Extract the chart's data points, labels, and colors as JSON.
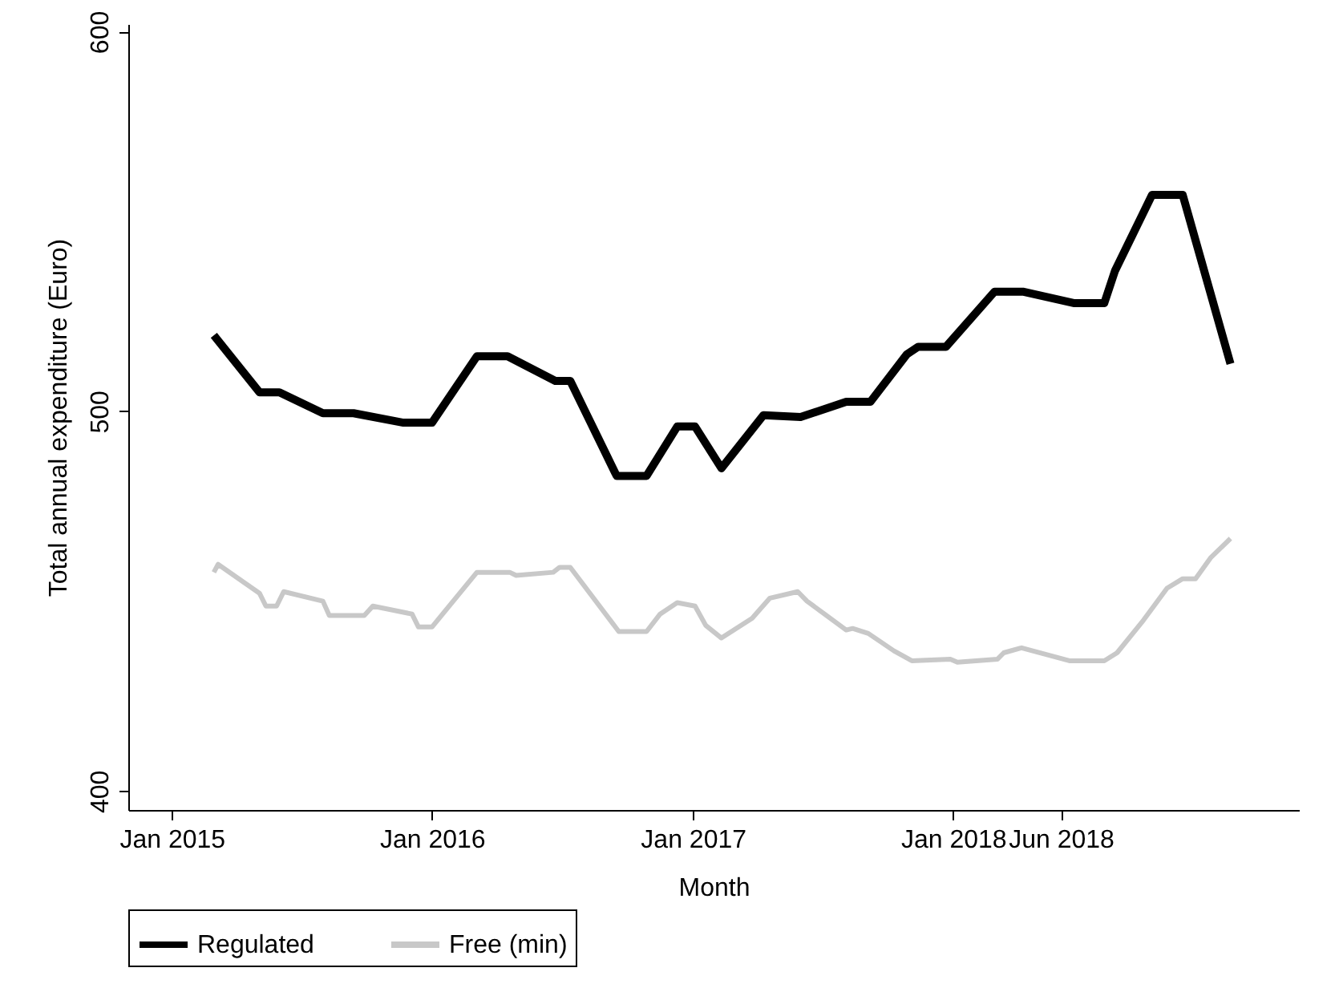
{
  "chart_data": {
    "type": "line",
    "xlabel": "Month",
    "ylabel": "Total annual expenditure (Euro)",
    "xlim": [
      "2014-11-01",
      "2019-05-01"
    ],
    "ylim": [
      395,
      602
    ],
    "xticks": [
      {
        "value": "2015-01",
        "label": "Jan 2015"
      },
      {
        "value": "2016-01",
        "label": "Jan 2016"
      },
      {
        "value": "2017-01",
        "label": "Jan 2017"
      },
      {
        "value": "2018-01",
        "label": "Jan 2018"
      },
      {
        "value": "2018-06",
        "label": "Jun 2018"
      }
    ],
    "yticks": [
      400,
      500,
      600
    ],
    "legend": "bottom",
    "series": [
      {
        "name": "Regulated",
        "color": "#000000",
        "x": [
          "2015-03-01",
          "2015-05-04",
          "2015-06-01",
          "2015-08-01",
          "2015-09-13",
          "2015-11-22",
          "2016-01-01",
          "2016-03-04",
          "2016-04-16",
          "2016-06-22",
          "2016-07-13",
          "2016-09-16",
          "2016-10-28",
          "2016-12-10",
          "2017-01-04",
          "2017-02-10",
          "2017-04-10",
          "2017-06-01",
          "2017-08-04",
          "2017-09-07",
          "2017-10-28",
          "2017-11-13",
          "2017-12-22",
          "2018-02-28",
          "2018-04-10",
          "2018-06-19",
          "2018-08-01",
          "2018-08-16",
          "2018-10-07",
          "2018-11-19",
          "2019-01-25"
        ],
        "values": [
          520,
          505,
          505,
          499.5,
          499.5,
          497,
          497,
          514.5,
          514.5,
          508,
          508,
          483,
          483,
          496,
          496,
          485,
          499,
          498.5,
          502.5,
          502.5,
          515,
          517,
          517,
          531.5,
          531.5,
          528.5,
          528.5,
          537,
          557,
          557,
          512.5
        ]
      },
      {
        "name": "Free (min)",
        "color": "#c8c8c8",
        "x": [
          "2015-03-01",
          "2015-03-07",
          "2015-05-04",
          "2015-05-13",
          "2015-05-28",
          "2015-06-07",
          "2015-08-01",
          "2015-08-10",
          "2015-09-28",
          "2015-10-10",
          "2015-12-04",
          "2015-12-13",
          "2016-01-01",
          "2016-03-04",
          "2016-04-19",
          "2016-04-28",
          "2016-06-19",
          "2016-06-28",
          "2016-07-13",
          "2016-09-19",
          "2016-10-28",
          "2016-11-16",
          "2016-12-10",
          "2017-01-04",
          "2017-01-19",
          "2017-02-10",
          "2017-03-25",
          "2017-04-19",
          "2017-05-28",
          "2017-06-10",
          "2017-08-04",
          "2017-08-13",
          "2017-09-04",
          "2017-10-10",
          "2017-11-04",
          "2017-12-28",
          "2018-01-07",
          "2018-03-04",
          "2018-03-13",
          "2018-04-07",
          "2018-06-13",
          "2018-08-01",
          "2018-08-19",
          "2018-09-25",
          "2018-10-28",
          "2018-11-19",
          "2018-12-07",
          "2018-12-28",
          "2019-01-25"
        ],
        "values": [
          457.6,
          459.7,
          452.1,
          448.7,
          448.7,
          452.5,
          450,
          446.2,
          446.2,
          448.7,
          446.6,
          443.2,
          443.2,
          457.6,
          457.6,
          456.8,
          457.6,
          458.9,
          458.9,
          442,
          442,
          446.6,
          449.6,
          448.7,
          443.6,
          440.3,
          445.5,
          450.8,
          452.5,
          450,
          442.4,
          442.8,
          441.5,
          436.9,
          434.3,
          434.7,
          433.9,
          434.7,
          436.4,
          437.7,
          434.3,
          434.3,
          436.4,
          445,
          453.4,
          455.9,
          455.9,
          461.4,
          466.5
        ]
      }
    ]
  }
}
